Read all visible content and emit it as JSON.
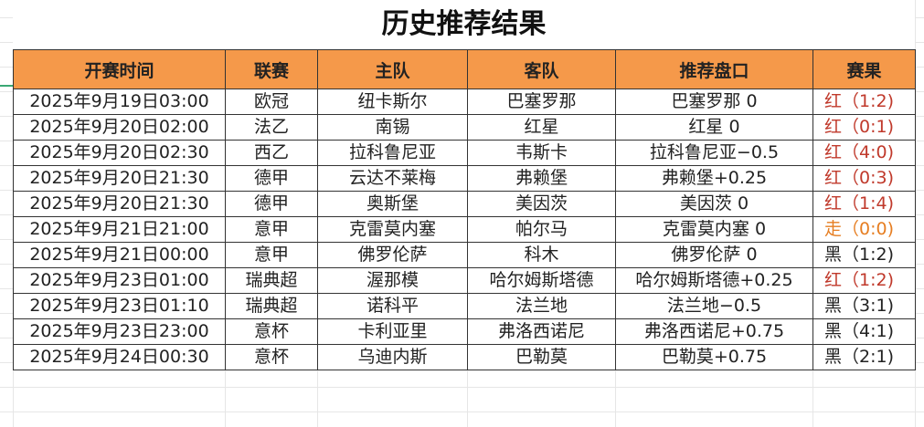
{
  "title": "历史推荐结果",
  "headers": [
    "开赛时间",
    "联赛",
    "主队",
    "客队",
    "推荐盘口",
    "赛果"
  ],
  "colors": {
    "header_bg": "#f5994a",
    "red": "#c0392b",
    "push": "#e67e22",
    "black": "#222222"
  },
  "rows": [
    {
      "time": "2025年9月19日03:00",
      "league": "欧冠",
      "home": "纽卡斯尔",
      "away": "巴塞罗那",
      "pick": "巴塞罗那 0",
      "result": "红（1:2)",
      "status": "red"
    },
    {
      "time": "2025年9月20日02:00",
      "league": "法乙",
      "home": "南锡",
      "away": "红星",
      "pick": "红星 0",
      "result": "红（0:1)",
      "status": "red"
    },
    {
      "time": "2025年9月20日02:30",
      "league": "西乙",
      "home": "拉科鲁尼亚",
      "away": "韦斯卡",
      "pick": "拉科鲁尼亚−0.5",
      "result": "红（4:0)",
      "status": "red"
    },
    {
      "time": "2025年9月20日21:30",
      "league": "德甲",
      "home": "云达不莱梅",
      "away": "弗赖堡",
      "pick": "弗赖堡+0.25",
      "result": "红（0:3)",
      "status": "red"
    },
    {
      "time": "2025年9月20日21:30",
      "league": "德甲",
      "home": "奥斯堡",
      "away": "美因茨",
      "pick": "美因茨 0",
      "result": "红（1:4)",
      "status": "red"
    },
    {
      "time": "2025年9月21日21:00",
      "league": "意甲",
      "home": "克雷莫内塞",
      "away": "帕尔马",
      "pick": "克雷莫内塞 0",
      "result": "走（0:0)",
      "status": "push"
    },
    {
      "time": "2025年9月21日00:00",
      "league": "意甲",
      "home": "佛罗伦萨",
      "away": "科木",
      "pick": "佛罗伦萨 0",
      "result": "黑（1:2)",
      "status": "black"
    },
    {
      "time": "2025年9月23日01:00",
      "league": "瑞典超",
      "home": "渥那模",
      "away": "哈尔姆斯塔德",
      "pick": "哈尔姆斯塔德+0.25",
      "result": "红（1:2)",
      "status": "red"
    },
    {
      "time": "2025年9月23日01:10",
      "league": "瑞典超",
      "home": "诺科平",
      "away": "法兰地",
      "pick": "法兰地−0.5",
      "result": "黑（3:1)",
      "status": "black"
    },
    {
      "time": "2025年9月23日23:00",
      "league": "意杯",
      "home": "卡利亚里",
      "away": "弗洛西诺尼",
      "pick": "弗洛西诺尼+0.75",
      "result": "黑（4:1)",
      "status": "black"
    },
    {
      "time": "2025年9月24日00:30",
      "league": "意杯",
      "home": "乌迪内斯",
      "away": "巴勒莫",
      "pick": "巴勒莫+0.75",
      "result": "黑（2:1)",
      "status": "black"
    }
  ]
}
